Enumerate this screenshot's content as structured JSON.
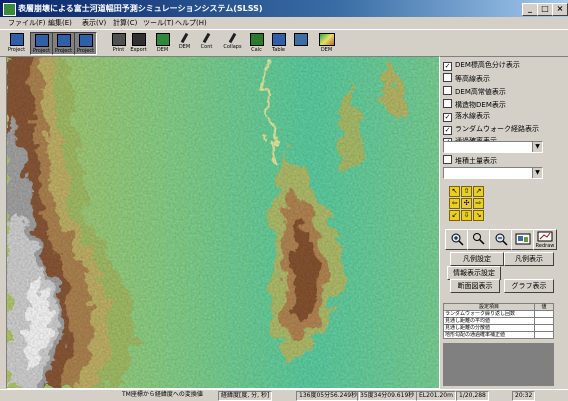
{
  "window": {
    "title": "表層崩壊による富士河道幅田予測シミュレーションシステム(SLSS)",
    "controls": [
      "_",
      "□",
      "×"
    ]
  },
  "menu": [
    "ファイル(F)",
    "編集(E)",
    "表示(V)",
    "計算(C)",
    "ツール(T)",
    "ヘルプ(H)"
  ],
  "toolbar": {
    "buttons": [
      {
        "label": "Project",
        "icon": "project-icon",
        "sunk": false
      },
      {
        "label": "Project",
        "icon": "project-icon",
        "sunk": true
      },
      {
        "label": "Project",
        "icon": "project-icon",
        "sunk": true
      },
      {
        "label": "Project",
        "icon": "project-icon",
        "sunk": true
      },
      {
        "label": "Print",
        "icon": "print-icon",
        "sunk": false
      },
      {
        "label": "Export",
        "icon": "export-icon",
        "sunk": false
      },
      {
        "label": "DEM",
        "icon": "dem-icon",
        "sunk": false
      },
      {
        "label": "DEM",
        "icon": "pen-icon",
        "sunk": false
      },
      {
        "label": "Cont",
        "icon": "pen-icon",
        "sunk": false
      },
      {
        "label": "Collaps",
        "icon": "pen-icon",
        "sunk": false
      },
      {
        "label": "Calc",
        "icon": "calc-icon",
        "sunk": false
      },
      {
        "label": "Table",
        "icon": "table-icon",
        "sunk": false
      },
      {
        "label": "",
        "icon": "window-icon",
        "sunk": false
      },
      {
        "label": "DEM",
        "icon": "dem-map-icon",
        "sunk": false
      }
    ]
  },
  "panel": {
    "checks": [
      {
        "label": "DEM標高色分け表示",
        "checked": true
      },
      {
        "label": "等高線表示",
        "checked": false
      },
      {
        "label": "DEM高常値表示",
        "checked": false
      },
      {
        "label": "構造物DEM表示",
        "checked": false
      },
      {
        "label": "落水線表示",
        "checked": true
      },
      {
        "label": "ランダムウォーク経路表示",
        "checked": true
      },
      {
        "label": "通過確率表示",
        "checked": true
      }
    ],
    "check_sediment": {
      "label": "堆積土量表示",
      "checked": false
    },
    "combo_arrow": "▼",
    "arrows": [
      "↖",
      "⇧",
      "↗",
      "⇦",
      "✣",
      "⇨",
      "↙",
      "⇩",
      "↘"
    ],
    "legend_setting": "凡例設定",
    "legend_show": "凡例表示",
    "info_setting": "情報表示設定",
    "section_show": "断面図表示",
    "graph_show": "グラフ表示",
    "redraw_label": "Redraw"
  },
  "table": {
    "headers": [
      "設定項目",
      "値"
    ],
    "rows": [
      [
        "ランダムウォーク繰り返し回数",
        ""
      ],
      [
        "見通し距離の平均値",
        ""
      ],
      [
        "見通し距離の分散値",
        ""
      ],
      [
        "地形勾配の通過確率補正値",
        ""
      ]
    ]
  },
  "status": {
    "convert_label": "TM座標から経緯度への変換値",
    "format": "経緯度[度, 分, 秒]",
    "lon": "136度05分56.249秒",
    "lat": "35度34分09.619秒",
    "elev": "EL201.20m",
    "scale": "1/20,288",
    "time": "20:32"
  }
}
